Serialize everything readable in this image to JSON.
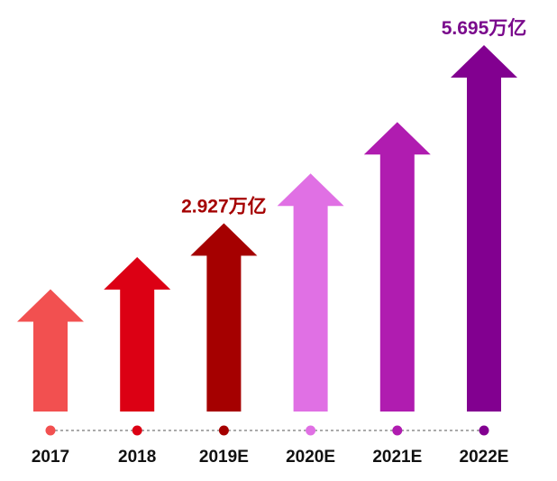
{
  "chart_data": {
    "type": "bar",
    "title": "",
    "xlabel": "",
    "ylabel": "",
    "categories": [
      "2017",
      "2018",
      "2019E",
      "2020E",
      "2021E",
      "2022E"
    ],
    "values": [
      1.9,
      2.4,
      2.927,
      3.7,
      4.5,
      5.695
    ],
    "ylim": [
      0,
      5.695
    ],
    "colors": [
      "#f25050",
      "#dc0014",
      "#a50000",
      "#e070e4",
      "#b01cb0",
      "#820090"
    ],
    "annotations": [
      {
        "category": "2019E",
        "text": "2.927万亿",
        "color": "#a50000"
      },
      {
        "category": "2022E",
        "text": "5.695万亿",
        "color": "#7a0a8c"
      }
    ],
    "marks": "arrows",
    "axis_line": "dashed"
  }
}
